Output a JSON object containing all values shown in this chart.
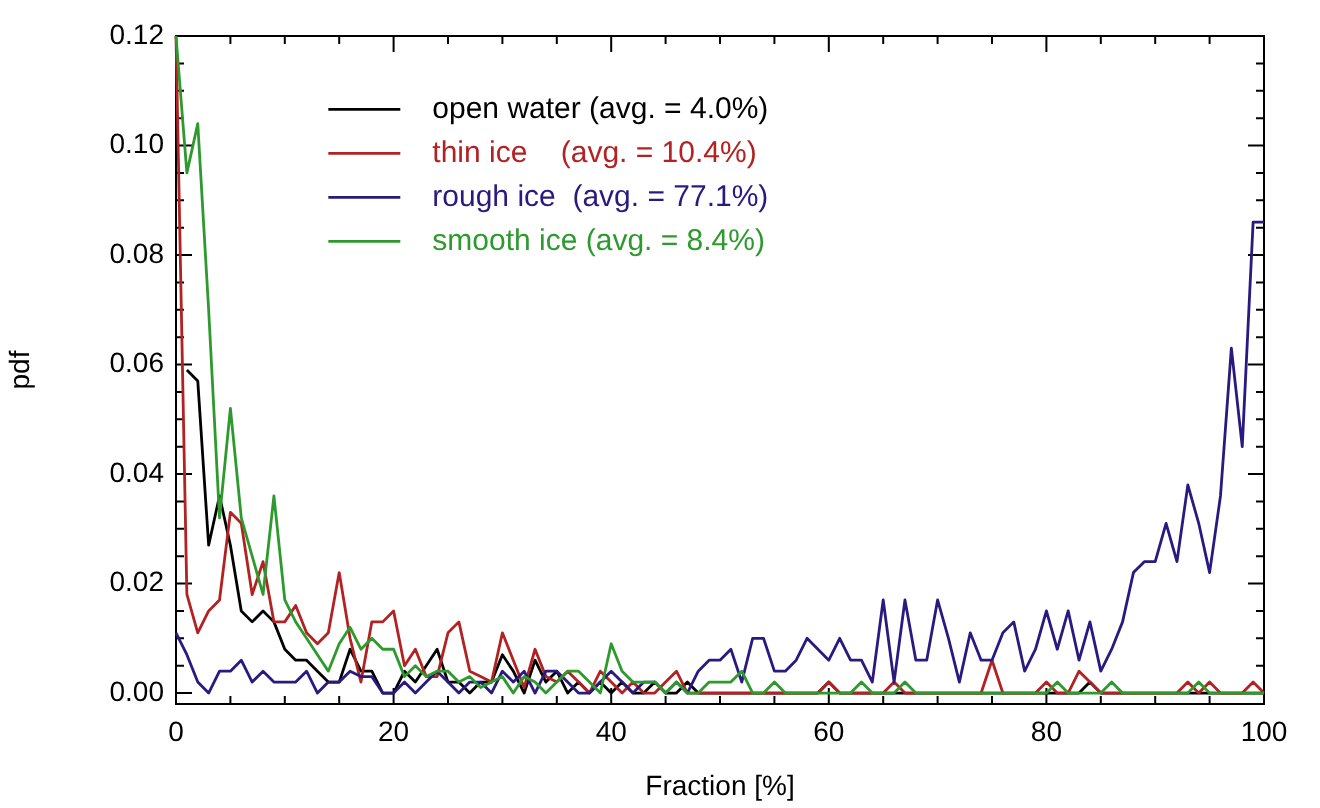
{
  "chart_data": {
    "type": "line",
    "xlabel": "Fraction [%]",
    "ylabel": "pdf",
    "x": [
      0,
      1,
      2,
      3,
      4,
      5,
      6,
      7,
      8,
      9,
      10,
      11,
      12,
      13,
      14,
      15,
      16,
      17,
      18,
      19,
      20,
      21,
      22,
      23,
      24,
      25,
      26,
      27,
      28,
      29,
      30,
      31,
      32,
      33,
      34,
      35,
      36,
      37,
      38,
      39,
      40,
      41,
      42,
      43,
      44,
      45,
      46,
      47,
      48,
      49,
      50,
      51,
      52,
      53,
      54,
      55,
      56,
      57,
      58,
      59,
      60,
      61,
      62,
      63,
      64,
      65,
      66,
      67,
      68,
      69,
      70,
      71,
      72,
      73,
      74,
      75,
      76,
      77,
      78,
      79,
      80,
      81,
      82,
      83,
      84,
      85,
      86,
      87,
      88,
      89,
      90,
      91,
      92,
      93,
      94,
      95,
      96,
      97,
      98,
      99,
      100
    ],
    "series": [
      {
        "name": "open water (avg. = 4.0%)",
        "color": "#000000",
        "values": [
          null,
          0.059,
          0.057,
          0.027,
          0.036,
          0.027,
          0.015,
          0.013,
          0.015,
          0.013,
          0.008,
          0.006,
          0.006,
          0.004,
          0.002,
          0.002,
          0.008,
          0.004,
          0.004,
          0,
          0,
          0.004,
          0.002,
          0.005,
          0.008,
          0.002,
          0.002,
          0,
          0.002,
          0.002,
          0.007,
          0.004,
          0,
          0.006,
          0.002,
          0.004,
          0,
          0.002,
          0,
          0.002,
          0,
          0.002,
          0,
          0,
          0.002,
          0,
          0,
          0.002,
          0,
          0,
          0,
          0,
          0,
          0,
          0,
          0,
          0,
          0,
          0,
          0,
          0.002,
          0,
          0,
          0,
          0,
          0,
          0,
          0,
          0,
          0,
          0,
          0,
          0,
          0,
          0,
          0,
          0,
          0,
          0,
          0,
          0,
          0,
          0,
          0,
          0.002,
          0,
          0,
          0,
          0,
          0,
          0,
          0,
          0,
          0,
          0,
          0,
          0,
          0,
          0,
          0,
          0
        ]
      },
      {
        "name": "thin ice    (avg. = 10.4%)",
        "color": "#b22222",
        "values": [
          0.12,
          0.018,
          0.011,
          0.015,
          0.017,
          0.033,
          0.031,
          0.018,
          0.024,
          0.013,
          0.013,
          0.016,
          0.011,
          0.009,
          0.011,
          0.022,
          0.01,
          0.002,
          0.013,
          0.013,
          0.015,
          0.005,
          0.008,
          0.003,
          0.003,
          0.011,
          0.013,
          0.004,
          0.003,
          0.002,
          0.011,
          0.006,
          0.001,
          0.008,
          0.003,
          0.002,
          0.004,
          0.002,
          0,
          0.004,
          0.002,
          0,
          0.002,
          0,
          0,
          0.002,
          0.004,
          0,
          0,
          0,
          0,
          0,
          0,
          0,
          0,
          0,
          0,
          0,
          0,
          0,
          0.002,
          0,
          0,
          0,
          0,
          0,
          0.002,
          0,
          0,
          0,
          0,
          0,
          0,
          0,
          0,
          0.006,
          0,
          0,
          0,
          0,
          0.002,
          0,
          0,
          0.004,
          0.002,
          0,
          0,
          0,
          0,
          0,
          0,
          0,
          0,
          0.002,
          0,
          0.002,
          0,
          0,
          0,
          0.002,
          0
        ]
      },
      {
        "name": "rough ice  (avg. = 77.1%)",
        "color": "#2a1a80",
        "values": [
          0.011,
          0.007,
          0.002,
          0,
          0.004,
          0.004,
          0.006,
          0.002,
          0.004,
          0.002,
          0.002,
          0.002,
          0.004,
          0,
          0.002,
          0.002,
          0.004,
          0.003,
          0.003,
          0,
          0,
          0.002,
          0,
          0.002,
          0.004,
          0.002,
          0,
          0.002,
          0.002,
          0,
          0.004,
          0.002,
          0.004,
          0,
          0.004,
          0.004,
          0.002,
          0,
          0,
          0.002,
          0.004,
          0.002,
          0,
          0.002,
          0.002,
          0,
          0.002,
          0,
          0.004,
          0.006,
          0.006,
          0.008,
          0.002,
          0.01,
          0.01,
          0.004,
          0.004,
          0.006,
          0.01,
          0.008,
          0.006,
          0.01,
          0.006,
          0.006,
          0.002,
          0.017,
          0.002,
          0.017,
          0.006,
          0.006,
          0.017,
          0.01,
          0.002,
          0.011,
          0.006,
          0.006,
          0.011,
          0.013,
          0.004,
          0.008,
          0.015,
          0.008,
          0.015,
          0.006,
          0.013,
          0.004,
          0.008,
          0.013,
          0.022,
          0.024,
          0.024,
          0.031,
          0.024,
          0.038,
          0.031,
          0.022,
          0.036,
          0.063,
          0.045,
          0.086,
          0.086
        ]
      },
      {
        "name": "smooth ice (avg. = 8.4%)",
        "color": "#2e9a2e",
        "values": [
          0.12,
          0.095,
          0.104,
          0.07,
          0.032,
          0.052,
          0.032,
          0.025,
          0.018,
          0.036,
          0.017,
          0.013,
          0.01,
          0.007,
          0.004,
          0.009,
          0.012,
          0.008,
          0.01,
          0.008,
          0.008,
          0.003,
          0.005,
          0.003,
          0.004,
          0.004,
          0.002,
          0.003,
          0.001,
          0.002,
          0.003,
          0,
          0.003,
          0.002,
          0,
          0.002,
          0.004,
          0.004,
          0.002,
          0,
          0.009,
          0.004,
          0.002,
          0.002,
          0.002,
          0,
          0.002,
          0,
          0,
          0.002,
          0.002,
          0.002,
          0.004,
          0,
          0,
          0.002,
          0,
          0,
          0,
          0,
          0,
          0,
          0,
          0.002,
          0,
          0,
          0,
          0.002,
          0,
          0,
          0,
          0,
          0,
          0,
          0,
          0,
          0,
          0,
          0,
          0,
          0,
          0.002,
          0,
          0,
          0,
          0,
          0.002,
          0,
          0,
          0,
          0,
          0,
          0,
          0,
          0.002,
          0,
          0,
          0,
          0,
          0,
          0
        ]
      }
    ],
    "xlim": [
      0,
      100
    ],
    "xticks": [
      0,
      {
        "value": 5,
        "label": null
      },
      {
        "value": 10,
        "label": null
      },
      {
        "value": 15,
        "label": null
      },
      20,
      {
        "value": 25,
        "label": null
      },
      {
        "value": 30,
        "label": null
      },
      {
        "value": 35,
        "label": null
      },
      40,
      {
        "value": 45,
        "label": null
      },
      {
        "value": 50,
        "label": null
      },
      {
        "value": 55,
        "label": null
      },
      60,
      {
        "value": 65,
        "label": null
      },
      {
        "value": 70,
        "label": null
      },
      {
        "value": 75,
        "label": null
      },
      80,
      {
        "value": 85,
        "label": null
      },
      {
        "value": 90,
        "label": null
      },
      {
        "value": 95,
        "label": null
      },
      100
    ],
    "ylim": [
      -0.002,
      0.12
    ],
    "yticks": [
      {
        "value": 0,
        "label": "0.00"
      },
      {
        "value": 0.005,
        "label": null
      },
      {
        "value": 0.01,
        "label": null
      },
      {
        "value": 0.015,
        "label": null
      },
      {
        "value": 0.02,
        "label": "0.02"
      },
      {
        "value": 0.025,
        "label": null
      },
      {
        "value": 0.03,
        "label": null
      },
      {
        "value": 0.035,
        "label": null
      },
      {
        "value": 0.04,
        "label": "0.04"
      },
      {
        "value": 0.045,
        "label": null
      },
      {
        "value": 0.05,
        "label": null
      },
      {
        "value": 0.055,
        "label": null
      },
      {
        "value": 0.06,
        "label": "0.06"
      },
      {
        "value": 0.065,
        "label": null
      },
      {
        "value": 0.07,
        "label": null
      },
      {
        "value": 0.075,
        "label": null
      },
      {
        "value": 0.08,
        "label": "0.08"
      },
      {
        "value": 0.085,
        "label": null
      },
      {
        "value": 0.09,
        "label": null
      },
      {
        "value": 0.095,
        "label": null
      },
      {
        "value": 0.1,
        "label": "0.10"
      },
      {
        "value": 0.105,
        "label": null
      },
      {
        "value": 0.11,
        "label": null
      },
      {
        "value": 0.115,
        "label": null
      },
      {
        "value": 0.12,
        "label": "0.12"
      }
    ],
    "grid": false,
    "legend": "top",
    "marker": "none",
    "line_style": "solid"
  }
}
